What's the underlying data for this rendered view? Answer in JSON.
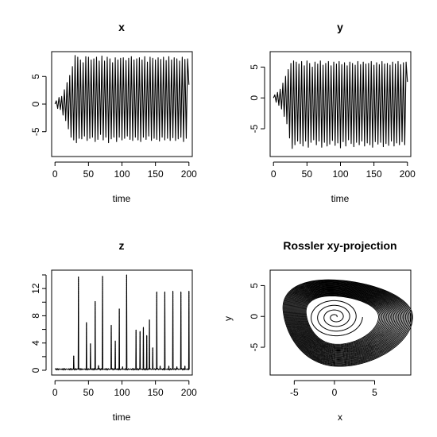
{
  "chart_data": [
    {
      "type": "line",
      "title": "x",
      "xlabel": "time",
      "ylabel": "",
      "xlim": [
        -5,
        205
      ],
      "ylim": [
        -9.5,
        9.5
      ],
      "x_ticks": [
        0,
        50,
        100,
        150,
        200
      ],
      "y_ticks": [
        -5,
        0,
        5
      ],
      "grid": false,
      "series": [
        {
          "x": [
            0,
            2,
            4,
            6,
            8,
            10,
            12,
            14,
            16,
            18,
            20,
            22,
            24,
            26,
            28,
            30,
            32,
            34,
            36,
            38,
            40,
            42,
            44,
            46,
            48,
            50,
            52,
            54,
            56,
            58,
            60,
            62,
            64,
            66,
            68,
            70,
            72,
            74,
            76,
            78,
            80,
            82,
            84,
            86,
            88,
            90,
            92,
            94,
            96,
            98,
            100,
            102,
            104,
            106,
            108,
            110,
            112,
            114,
            116,
            118,
            120,
            122,
            124,
            126,
            128,
            130,
            132,
            134,
            136,
            138,
            140,
            142,
            144,
            146,
            148,
            150,
            152,
            154,
            156,
            158,
            160,
            162,
            164,
            166,
            168,
            170,
            172,
            174,
            176,
            178,
            180,
            182,
            184,
            186,
            188,
            190,
            192,
            194,
            196,
            198,
            200
          ],
          "y": [
            0.0,
            0.6,
            -0.8,
            1.2,
            -1.0,
            1.4,
            -2.0,
            2.6,
            -3.0,
            3.9,
            -4.5,
            5.2,
            -6.0,
            6.8,
            -6.5,
            8.8,
            -7.0,
            8.5,
            -6.2,
            8.0,
            -6.3,
            7.5,
            -5.8,
            8.6,
            -6.6,
            8.5,
            -6.2,
            8.0,
            -6.0,
            8.2,
            -6.8,
            8.5,
            -6.4,
            7.8,
            -5.5,
            8.7,
            -6.5,
            7.8,
            -6.0,
            8.5,
            -7.0,
            8.2,
            -6.3,
            7.5,
            -6.0,
            8.4,
            -6.8,
            8.0,
            -6.0,
            8.3,
            -6.5,
            8.4,
            -6.2,
            7.9,
            -5.8,
            8.3,
            -6.4,
            8.6,
            -6.6,
            8.0,
            -6.0,
            8.2,
            -6.5,
            8.4,
            -6.8,
            8.0,
            -6.0,
            8.6,
            -6.4,
            7.6,
            -5.8,
            8.5,
            -6.6,
            8.3,
            -6.2,
            8.0,
            -6.4,
            8.4,
            -6.7,
            8.1,
            -6.0,
            8.5,
            -6.5,
            7.9,
            -6.2,
            8.6,
            -6.6,
            8.0,
            -6.1,
            8.4,
            -6.6,
            8.2,
            -6.3,
            7.8,
            -6.0,
            8.5,
            -6.8,
            8.1,
            -6.2,
            8.2,
            3.5
          ]
        }
      ]
    },
    {
      "type": "line",
      "title": "y",
      "xlabel": "time",
      "ylabel": "",
      "xlim": [
        -5,
        205
      ],
      "ylim": [
        -9.5,
        7.5
      ],
      "x_ticks": [
        0,
        50,
        100,
        150,
        200
      ],
      "y_ticks": [
        -5,
        0,
        5
      ],
      "grid": false,
      "series": [
        {
          "x": [
            0,
            2,
            4,
            6,
            8,
            10,
            12,
            14,
            16,
            18,
            20,
            22,
            24,
            26,
            28,
            30,
            32,
            34,
            36,
            38,
            40,
            42,
            44,
            46,
            48,
            50,
            52,
            54,
            56,
            58,
            60,
            62,
            64,
            66,
            68,
            70,
            72,
            74,
            76,
            78,
            80,
            82,
            84,
            86,
            88,
            90,
            92,
            94,
            96,
            98,
            100,
            102,
            104,
            106,
            108,
            110,
            112,
            114,
            116,
            118,
            120,
            122,
            124,
            126,
            128,
            130,
            132,
            134,
            136,
            138,
            140,
            142,
            144,
            146,
            148,
            150,
            152,
            154,
            156,
            158,
            160,
            162,
            164,
            166,
            168,
            170,
            172,
            174,
            176,
            178,
            180,
            182,
            184,
            186,
            188,
            190,
            192,
            194,
            196,
            198,
            200
          ],
          "y": [
            0.0,
            0.5,
            -0.7,
            0.9,
            -1.2,
            1.4,
            -1.8,
            2.4,
            -3.0,
            3.5,
            -4.2,
            4.6,
            -6.5,
            5.6,
            -8.2,
            6.0,
            -7.6,
            5.8,
            -7.0,
            5.5,
            -7.4,
            5.9,
            -7.8,
            5.2,
            -7.0,
            6.0,
            -8.0,
            5.6,
            -7.2,
            5.0,
            -6.8,
            5.8,
            -7.6,
            5.5,
            -7.0,
            6.0,
            -8.0,
            5.3,
            -7.2,
            5.6,
            -7.8,
            5.9,
            -7.5,
            5.2,
            -6.9,
            5.8,
            -7.7,
            5.5,
            -7.3,
            5.9,
            -8.1,
            5.4,
            -7.1,
            5.7,
            -7.8,
            5.2,
            -6.8,
            5.8,
            -7.4,
            5.6,
            -7.9,
            5.3,
            -7.2,
            5.9,
            -7.6,
            5.4,
            -7.0,
            5.8,
            -7.8,
            5.5,
            -7.3,
            5.6,
            -7.6,
            5.9,
            -8.0,
            5.3,
            -7.1,
            5.7,
            -7.5,
            5.4,
            -7.2,
            5.9,
            -7.9,
            5.5,
            -7.4,
            5.6,
            -7.7,
            5.3,
            -7.0,
            5.8,
            -7.8,
            5.5,
            -7.3,
            5.9,
            -7.6,
            5.4,
            -7.1,
            5.7,
            -7.6,
            5.8,
            2.6
          ]
        }
      ]
    },
    {
      "type": "line",
      "title": "z",
      "xlabel": "time",
      "ylabel": "",
      "xlim": [
        -5,
        205
      ],
      "ylim": [
        -0.7,
        14.7
      ],
      "x_ticks": [
        0,
        50,
        100,
        150,
        200
      ],
      "y_ticks": [
        0,
        4,
        8,
        12
      ],
      "y_minor_ticks": [
        2,
        6,
        10,
        14
      ],
      "grid": false,
      "baseline": 0.15,
      "spikes": [
        {
          "t": 28,
          "v": 2.1
        },
        {
          "t": 35,
          "v": 13.7
        },
        {
          "t": 47,
          "v": 7.0
        },
        {
          "t": 53,
          "v": 3.9
        },
        {
          "t": 60,
          "v": 10.1
        },
        {
          "t": 65,
          "v": 0.7
        },
        {
          "t": 71,
          "v": 13.8
        },
        {
          "t": 84,
          "v": 6.6
        },
        {
          "t": 90,
          "v": 4.3
        },
        {
          "t": 96,
          "v": 9.0
        },
        {
          "t": 101,
          "v": 0.5
        },
        {
          "t": 107,
          "v": 14.0
        },
        {
          "t": 121,
          "v": 5.9
        },
        {
          "t": 127,
          "v": 5.7
        },
        {
          "t": 132,
          "v": 6.3
        },
        {
          "t": 137,
          "v": 5.1
        },
        {
          "t": 141,
          "v": 7.4
        },
        {
          "t": 146,
          "v": 3.3
        },
        {
          "t": 152,
          "v": 11.5
        },
        {
          "t": 157,
          "v": 0.6
        },
        {
          "t": 164,
          "v": 11.5
        },
        {
          "t": 170,
          "v": 0.6
        },
        {
          "t": 176,
          "v": 11.6
        },
        {
          "t": 182,
          "v": 0.5
        },
        {
          "t": 188,
          "v": 11.5
        },
        {
          "t": 194,
          "v": 0.6
        },
        {
          "t": 200,
          "v": 11.6
        }
      ]
    },
    {
      "type": "line",
      "title": "Rossler xy-projection",
      "xlabel": "x",
      "ylabel": "y",
      "xlim": [
        -8.0,
        9.5
      ],
      "ylim": [
        -9.5,
        7.5
      ],
      "x_ticks": [
        -5,
        0,
        5
      ],
      "y_ticks": [
        -5,
        0,
        5
      ],
      "grid": false,
      "attractor": {
        "x_min": -7.2,
        "x_max": 9.0,
        "y_min": -8.2,
        "y_max": 6.0,
        "center_x": 0.5,
        "center_y": 0.0,
        "loops": 30,
        "inner_spiral_turns": 4
      }
    }
  ]
}
